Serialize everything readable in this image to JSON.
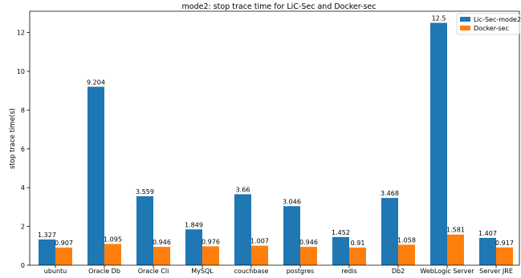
{
  "chart_data": {
    "type": "bar",
    "title": "mode2: stop trace time for LiC-Sec and Docker-sec",
    "xlabel": "",
    "ylabel": "stop trace time(s)",
    "categories": [
      "ubuntu",
      "Oracle Db",
      "Oracle Cli",
      "MySQL",
      "couchbase",
      "postgres",
      "redis",
      "Db2",
      "WebLogic Server",
      "Server JRE"
    ],
    "series": [
      {
        "name": "Lic-Sec-mode2",
        "color": "#1f77b4",
        "values": [
          1.327,
          9.204,
          3.559,
          1.849,
          3.66,
          3.046,
          1.452,
          3.468,
          12.5,
          1.407
        ],
        "labels": [
          "1.327",
          "9.204",
          "3.559",
          "1.849",
          "3.66",
          "3.046",
          "1.452",
          "3.468",
          "12.5",
          "1.407"
        ]
      },
      {
        "name": "Docker-sec",
        "color": "#ff7f0e",
        "values": [
          0.907,
          1.095,
          0.946,
          0.976,
          1.007,
          0.946,
          0.91,
          1.058,
          1.581,
          0.917
        ],
        "labels": [
          "0.907",
          "1.095",
          "0.946",
          "0.976",
          "1.007",
          "0.946",
          "0.91",
          "1.058",
          "1.581",
          "0.917"
        ]
      }
    ],
    "yticks": [
      "0",
      "2",
      "4",
      "6",
      "8",
      "10",
      "12"
    ],
    "ylim": [
      0,
      13.1
    ],
    "grid": false,
    "legend_position": "top-right"
  }
}
